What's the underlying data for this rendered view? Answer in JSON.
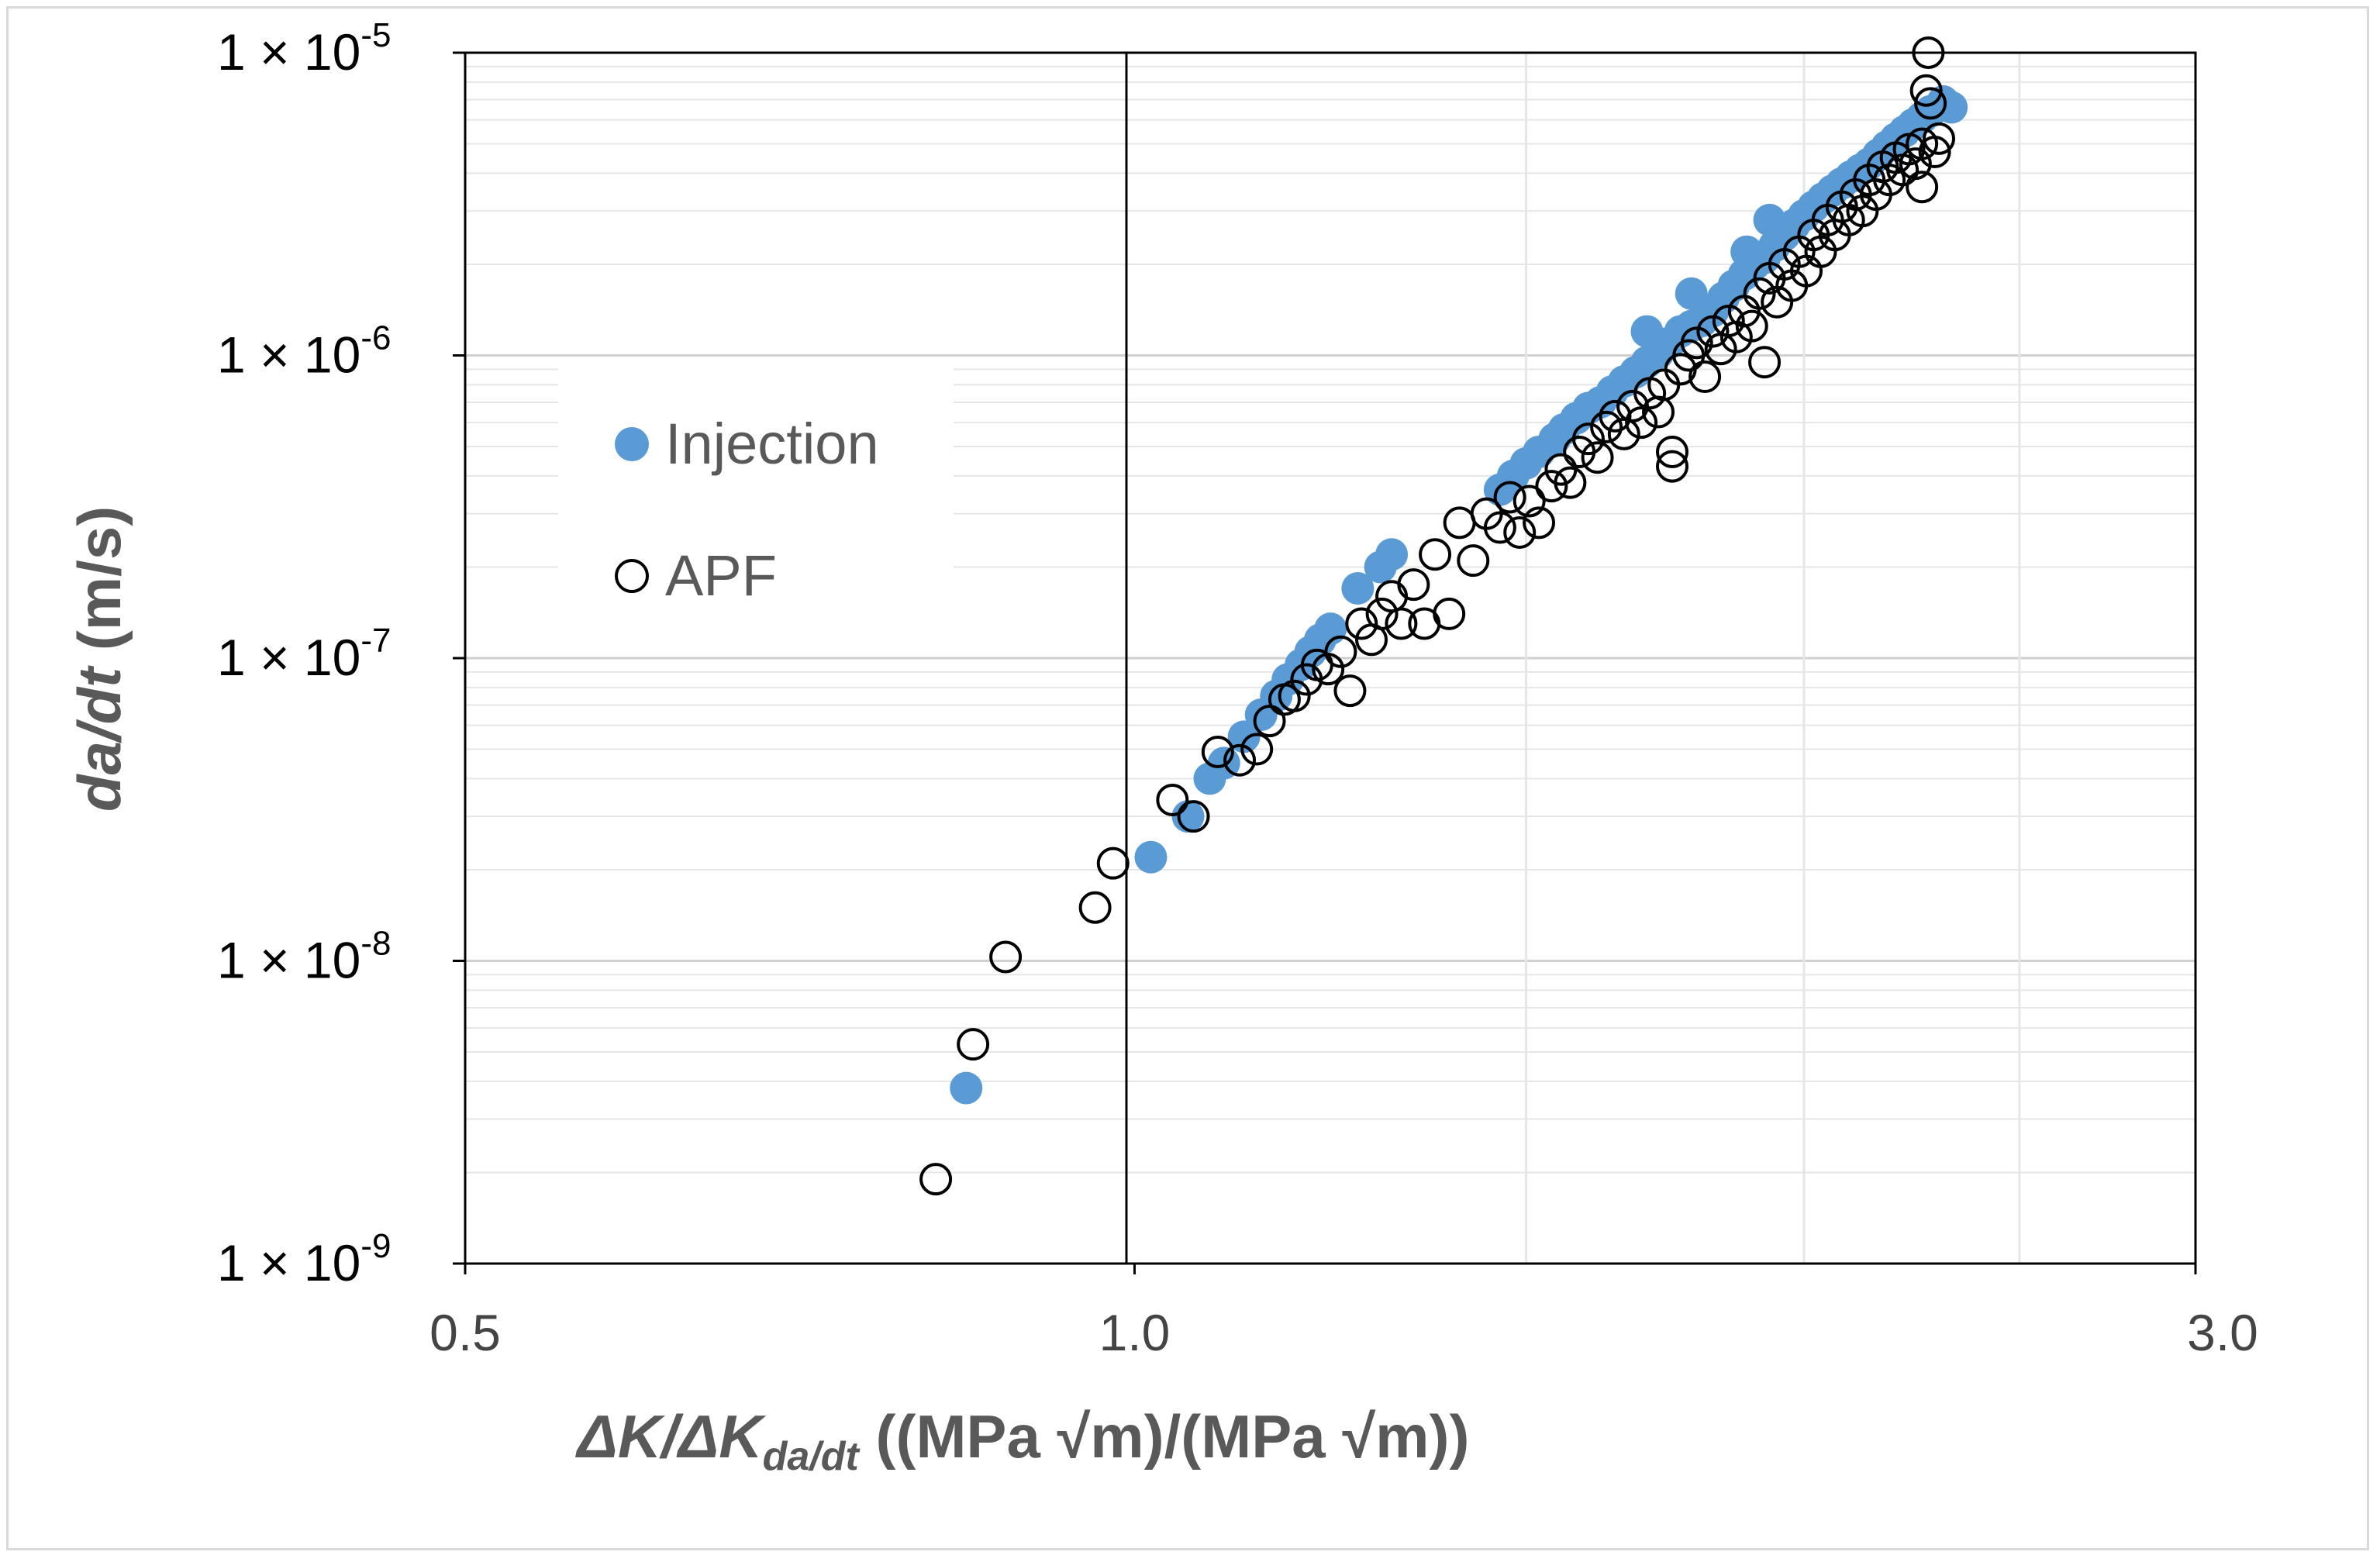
{
  "chart_data": {
    "type": "scatter",
    "xscale": "log",
    "yscale": "log",
    "xlim": [
      0.5,
      3.0
    ],
    "ylim": [
      1e-09,
      1e-05
    ],
    "x_ticks": [
      {
        "value": 0.5,
        "label": "0.5"
      },
      {
        "value": 1.0,
        "label": "1.0"
      },
      {
        "value": 3.0,
        "label": "3.0"
      }
    ],
    "y_ticks": [
      {
        "value": 1e-05,
        "base": "1 × 10",
        "exp": "-5"
      },
      {
        "value": 1e-06,
        "base": "1 × 10",
        "exp": "-6"
      },
      {
        "value": 1e-07,
        "base": "1 × 10",
        "exp": "-7"
      },
      {
        "value": 1e-08,
        "base": "1 × 10",
        "exp": "-8"
      },
      {
        "value": 1e-09,
        "base": "1 × 10",
        "exp": "-9"
      }
    ],
    "xlabel": {
      "p1": "ΔK/ΔK",
      "sub": "da/dt",
      "p2": " ((MPa √m)/(MPa √m))"
    },
    "ylabel": {
      "italic": "da/dt",
      "normal": " (m/s)"
    },
    "legend_position": "upper-left",
    "series": [
      {
        "name": "Injection",
        "marker": "filled-circle",
        "color": "#5b9bd5",
        "points": [
          [
            0.84,
            3.8e-09
          ],
          [
            1.017,
            2.2e-08
          ],
          [
            1.057,
            3e-08
          ],
          [
            1.081,
            4e-08
          ],
          [
            1.097,
            4.5e-08
          ],
          [
            1.12,
            5.5e-08
          ],
          [
            1.14,
            6.5e-08
          ],
          [
            1.158,
            7.5e-08
          ],
          [
            1.172,
            8.5e-08
          ],
          [
            1.188,
            9.5e-08
          ],
          [
            1.2,
            1.05e-07
          ],
          [
            1.212,
            1.15e-07
          ],
          [
            1.225,
            1.25e-07
          ],
          [
            1.26,
            1.7e-07
          ],
          [
            1.29,
            2e-07
          ],
          [
            1.305,
            2.2e-07
          ],
          [
            1.46,
            3.6e-07
          ],
          [
            1.48,
            4e-07
          ],
          [
            1.5,
            4.4e-07
          ],
          [
            1.52,
            4.8e-07
          ],
          [
            1.545,
            5.3e-07
          ],
          [
            1.56,
            5.7e-07
          ],
          [
            1.58,
            6.2e-07
          ],
          [
            1.6,
            6.7e-07
          ],
          [
            1.62,
            7e-07
          ],
          [
            1.64,
            7.6e-07
          ],
          [
            1.66,
            8.2e-07
          ],
          [
            1.68,
            8.8e-07
          ],
          [
            1.7,
            9.5e-07
          ],
          [
            1.72,
            1.02e-06
          ],
          [
            1.74,
            1.1e-06
          ],
          [
            1.76,
            1.2e-06
          ],
          [
            1.78,
            1.25e-06
          ],
          [
            1.8,
            1.3e-06
          ],
          [
            1.82,
            1.4e-06
          ],
          [
            1.84,
            1.55e-06
          ],
          [
            1.86,
            1.7e-06
          ],
          [
            1.88,
            1.85e-06
          ],
          [
            1.9,
            2e-06
          ],
          [
            1.92,
            2.1e-06
          ],
          [
            1.94,
            2.3e-06
          ],
          [
            1.96,
            2.5e-06
          ],
          [
            1.98,
            2.7e-06
          ],
          [
            2.0,
            2.9e-06
          ],
          [
            2.02,
            3.1e-06
          ],
          [
            2.04,
            3.3e-06
          ],
          [
            2.06,
            3.5e-06
          ],
          [
            2.08,
            3.7e-06
          ],
          [
            2.1,
            3.9e-06
          ],
          [
            2.12,
            4.1e-06
          ],
          [
            2.14,
            4.3e-06
          ],
          [
            2.16,
            4.6e-06
          ],
          [
            2.18,
            4.9e-06
          ],
          [
            2.2,
            5.2e-06
          ],
          [
            2.22,
            5.5e-06
          ],
          [
            2.24,
            5.8e-06
          ],
          [
            2.26,
            6.1e-06
          ],
          [
            2.28,
            6.4e-06
          ],
          [
            2.31,
            6.9e-06
          ],
          [
            2.33,
            6.6e-06
          ],
          [
            1.885,
            2.2e-06
          ],
          [
            1.93,
            2.8e-06
          ],
          [
            1.78,
            1.6e-06
          ],
          [
            1.7,
            1.2e-06
          ]
        ]
      },
      {
        "name": "APF",
        "marker": "open-circle",
        "color": "#000000",
        "points": [
          [
            0.814,
            1.9e-09
          ],
          [
            0.846,
            5.3e-09
          ],
          [
            0.875,
            1.03e-08
          ],
          [
            0.96,
            1.5e-08
          ],
          [
            0.978,
            2.1e-08
          ],
          [
            1.04,
            3.4e-08
          ],
          [
            1.063,
            3e-08
          ],
          [
            1.09,
            4.9e-08
          ],
          [
            1.115,
            4.6e-08
          ],
          [
            1.135,
            5e-08
          ],
          [
            1.15,
            6.2e-08
          ],
          [
            1.168,
            7.3e-08
          ],
          [
            1.18,
            7.5e-08
          ],
          [
            1.195,
            8.5e-08
          ],
          [
            1.208,
            9.5e-08
          ],
          [
            1.222,
            9.2e-08
          ],
          [
            1.238,
            1.05e-07
          ],
          [
            1.25,
            7.8e-08
          ],
          [
            1.265,
            1.3e-07
          ],
          [
            1.278,
            1.15e-07
          ],
          [
            1.292,
            1.4e-07
          ],
          [
            1.305,
            1.6e-07
          ],
          [
            1.318,
            1.3e-07
          ],
          [
            1.335,
            1.75e-07
          ],
          [
            1.35,
            1.3e-07
          ],
          [
            1.365,
            2.2e-07
          ],
          [
            1.385,
            1.4e-07
          ],
          [
            1.4,
            2.8e-07
          ],
          [
            1.42,
            2.1e-07
          ],
          [
            1.44,
            3e-07
          ],
          [
            1.46,
            2.7e-07
          ],
          [
            1.475,
            3.4e-07
          ],
          [
            1.49,
            2.6e-07
          ],
          [
            1.505,
            3.3e-07
          ],
          [
            1.52,
            2.8e-07
          ],
          [
            1.54,
            3.7e-07
          ],
          [
            1.555,
            4.2e-07
          ],
          [
            1.57,
            3.8e-07
          ],
          [
            1.585,
            4.8e-07
          ],
          [
            1.6,
            5.3e-07
          ],
          [
            1.615,
            4.6e-07
          ],
          [
            1.63,
            5.8e-07
          ],
          [
            1.645,
            6.3e-07
          ],
          [
            1.66,
            5.5e-07
          ],
          [
            1.675,
            6.8e-07
          ],
          [
            1.69,
            6e-07
          ],
          [
            1.705,
            7.5e-07
          ],
          [
            1.72,
            6.5e-07
          ],
          [
            1.73,
            8e-07
          ],
          [
            1.745,
            4.8e-07
          ],
          [
            1.745,
            4.3e-07
          ],
          [
            1.76,
            9e-07
          ],
          [
            1.775,
            1e-06
          ],
          [
            1.79,
            1.1e-06
          ],
          [
            1.805,
            8.5e-07
          ],
          [
            1.82,
            1.2e-06
          ],
          [
            1.835,
            1.05e-06
          ],
          [
            1.85,
            1.3e-06
          ],
          [
            1.865,
            1.15e-06
          ],
          [
            1.88,
            1.4e-06
          ],
          [
            1.895,
            1.25e-06
          ],
          [
            1.91,
            1.6e-06
          ],
          [
            1.92,
            9.5e-07
          ],
          [
            1.93,
            1.8e-06
          ],
          [
            1.945,
            1.5e-06
          ],
          [
            1.96,
            2e-06
          ],
          [
            1.975,
            1.7e-06
          ],
          [
            1.99,
            2.2e-06
          ],
          [
            2.005,
            1.9e-06
          ],
          [
            2.02,
            2.5e-06
          ],
          [
            2.035,
            2.2e-06
          ],
          [
            2.05,
            2.8e-06
          ],
          [
            2.065,
            2.5e-06
          ],
          [
            2.08,
            3.1e-06
          ],
          [
            2.095,
            2.8e-06
          ],
          [
            2.11,
            3.4e-06
          ],
          [
            2.125,
            3e-06
          ],
          [
            2.14,
            3.8e-06
          ],
          [
            2.155,
            3.4e-06
          ],
          [
            2.17,
            4.2e-06
          ],
          [
            2.185,
            3.8e-06
          ],
          [
            2.2,
            4.5e-06
          ],
          [
            2.215,
            4.1e-06
          ],
          [
            2.23,
            4.8e-06
          ],
          [
            2.245,
            4.3e-06
          ],
          [
            2.26,
            3.6e-06
          ],
          [
            2.26,
            5e-06
          ],
          [
            2.27,
            7.5e-06
          ],
          [
            2.275,
            1e-05
          ],
          [
            2.28,
            6.8e-06
          ],
          [
            2.29,
            4.7e-06
          ],
          [
            2.3,
            5.2e-06
          ]
        ]
      }
    ]
  }
}
